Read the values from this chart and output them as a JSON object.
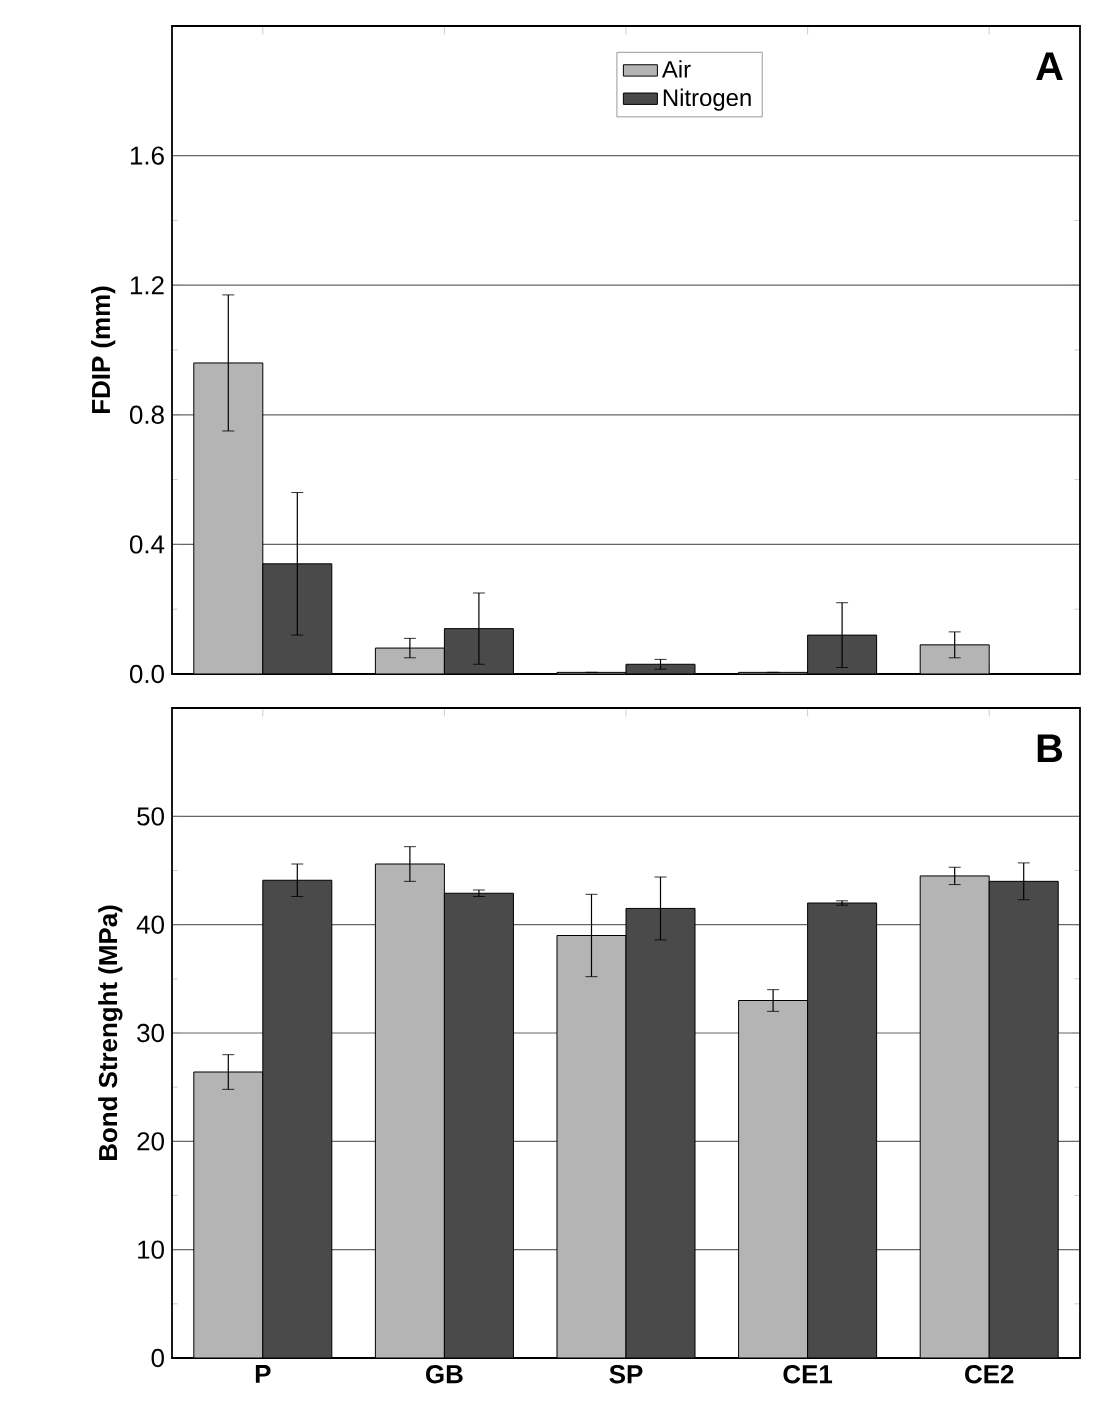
{
  "chart_data": [
    {
      "type": "bar",
      "ylabel": "FDIP (mm)",
      "annotations": [
        "A"
      ],
      "categories": [
        null,
        null,
        null,
        null,
        null
      ],
      "series": [
        {
          "name": "Air",
          "color": "#b4b4b4",
          "values": [
            0.96,
            0.08,
            0.005,
            0.005,
            0.09
          ],
          "errors": [
            0.21,
            0.03,
            null,
            null,
            0.04
          ]
        },
        {
          "name": "Nitrogen",
          "color": "#4a4a4a",
          "values": [
            0.34,
            0.14,
            0.03,
            0.12,
            null
          ],
          "errors": [
            0.22,
            0.11,
            0.015,
            0.1,
            null
          ]
        }
      ],
      "ylim": [
        0,
        2.0
      ],
      "yticks": [
        {
          "value": 0,
          "label": "0.0"
        },
        0.4,
        0.8,
        1.2,
        1.6
      ],
      "grid": "y",
      "legend": "top",
      "tick_labels": "y"
    },
    {
      "type": "bar",
      "ylabel": "Bond Strenght (MPa)",
      "annotations": [
        "B"
      ],
      "categories": [
        "P",
        "GB",
        "SP",
        "CE1",
        "CE2"
      ],
      "series": [
        {
          "color": "#b4b4b4",
          "values": [
            26.4,
            45.6,
            39.0,
            33.0,
            44.5
          ],
          "errors": [
            1.6,
            1.6,
            3.8,
            1.0,
            0.8
          ]
        },
        {
          "color": "#4a4a4a",
          "values": [
            44.1,
            42.9,
            41.5,
            42.0,
            44.0
          ],
          "errors": [
            1.5,
            0.3,
            2.9,
            0.2,
            1.7
          ]
        }
      ],
      "ylim": [
        0,
        60
      ],
      "yticks": [
        0,
        10,
        20,
        30,
        40,
        50
      ],
      "grid": "y"
    }
  ]
}
